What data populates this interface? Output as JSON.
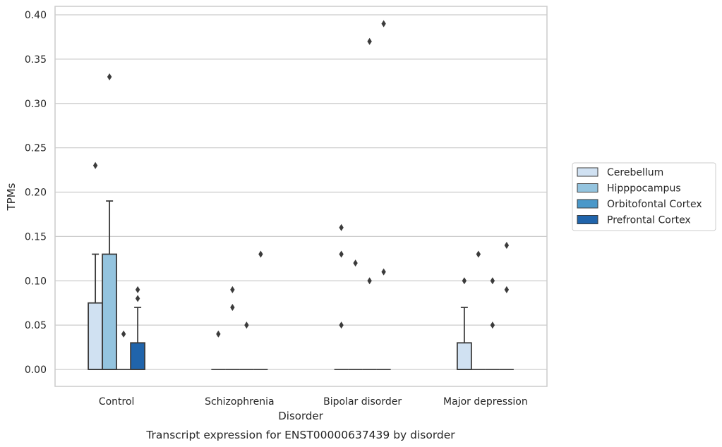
{
  "chart_data": {
    "type": "box",
    "title": "",
    "xlabel": "Disorder",
    "ylabel": "TPMs",
    "caption": "Transcript expression for ENST00000637439 by disorder",
    "ylim": [
      -0.02,
      0.41
    ],
    "yticks": [
      "0.00",
      "0.05",
      "0.10",
      "0.15",
      "0.20",
      "0.25",
      "0.30",
      "0.35",
      "0.40"
    ],
    "grid": "horizontal",
    "legend_position": "right",
    "categories": [
      "Control",
      "Schizophrenia",
      "Bipolar disorder",
      "Major depression"
    ],
    "series": [
      {
        "name": "Cerebellum",
        "color": "#d0e1f2",
        "boxes": [
          {
            "q1": 0.0,
            "median": 0.0,
            "q3": 0.075,
            "whisker_low": 0.0,
            "whisker_high": 0.13,
            "outliers": [
              0.23
            ]
          },
          {
            "q1": 0.0,
            "median": 0.0,
            "q3": 0.0,
            "whisker_low": 0.0,
            "whisker_high": 0.0,
            "outliers": [
              0.04
            ]
          },
          {
            "q1": 0.0,
            "median": 0.0,
            "q3": 0.0,
            "whisker_low": 0.0,
            "whisker_high": 0.0,
            "outliers": [
              0.16,
              0.13,
              0.05
            ]
          },
          {
            "q1": 0.0,
            "median": 0.0,
            "q3": 0.03,
            "whisker_low": 0.0,
            "whisker_high": 0.07,
            "outliers": [
              0.1
            ]
          }
        ]
      },
      {
        "name": "Hipppocampus",
        "color": "#94c4df",
        "boxes": [
          {
            "q1": 0.0,
            "median": 0.0,
            "q3": 0.13,
            "whisker_low": 0.0,
            "whisker_high": 0.19,
            "outliers": [
              0.33
            ]
          },
          {
            "q1": 0.0,
            "median": 0.0,
            "q3": 0.0,
            "whisker_low": 0.0,
            "whisker_high": 0.0,
            "outliers": [
              0.09,
              0.07
            ]
          },
          {
            "q1": 0.0,
            "median": 0.0,
            "q3": 0.0,
            "whisker_low": 0.0,
            "whisker_high": 0.0,
            "outliers": [
              0.12
            ]
          },
          {
            "q1": 0.0,
            "median": 0.0,
            "q3": 0.0,
            "whisker_low": 0.0,
            "whisker_high": 0.0,
            "outliers": [
              0.13
            ]
          }
        ]
      },
      {
        "name": "Orbitofontal Cortex",
        "color": "#4a98c9",
        "boxes": [
          {
            "q1": 0.0,
            "median": 0.0,
            "q3": 0.0,
            "whisker_low": 0.0,
            "whisker_high": 0.0,
            "outliers": [
              0.04
            ]
          },
          {
            "q1": 0.0,
            "median": 0.0,
            "q3": 0.0,
            "whisker_low": 0.0,
            "whisker_high": 0.0,
            "outliers": [
              0.05
            ]
          },
          {
            "q1": 0.0,
            "median": 0.0,
            "q3": 0.0,
            "whisker_low": 0.0,
            "whisker_high": 0.0,
            "outliers": [
              0.1,
              0.37
            ]
          },
          {
            "q1": 0.0,
            "median": 0.0,
            "q3": 0.0,
            "whisker_low": 0.0,
            "whisker_high": 0.0,
            "outliers": [
              0.1,
              0.05
            ]
          }
        ]
      },
      {
        "name": "Prefrontal Cortex",
        "color": "#2064ab",
        "boxes": [
          {
            "q1": 0.0,
            "median": 0.0,
            "q3": 0.03,
            "whisker_low": 0.0,
            "whisker_high": 0.07,
            "outliers": [
              0.09,
              0.08
            ]
          },
          {
            "q1": 0.0,
            "median": 0.0,
            "q3": 0.0,
            "whisker_low": 0.0,
            "whisker_high": 0.0,
            "outliers": [
              0.13
            ]
          },
          {
            "q1": 0.0,
            "median": 0.0,
            "q3": 0.0,
            "whisker_low": 0.0,
            "whisker_high": 0.0,
            "outliers": [
              0.11,
              0.39
            ]
          },
          {
            "q1": 0.0,
            "median": 0.0,
            "q3": 0.0,
            "whisker_low": 0.0,
            "whisker_high": 0.0,
            "outliers": [
              0.14,
              0.09
            ]
          }
        ]
      }
    ]
  }
}
